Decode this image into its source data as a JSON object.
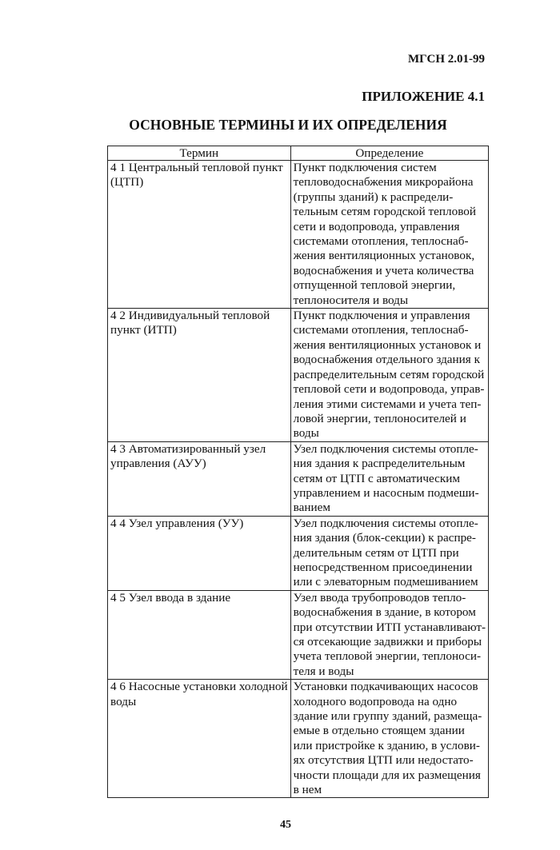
{
  "header": {
    "doc_code": "МГСН 2.01-99",
    "appendix": "ПРИЛОЖЕНИЕ 4.1"
  },
  "title": "ОСНОВНЫЕ ТЕРМИНЫ И ИХ ОПРЕДЕЛЕНИЯ",
  "table": {
    "columns": [
      "Термин",
      "Определение"
    ],
    "rows": [
      {
        "term": [
          "4 1  Центральный тепловой пункт",
          "(ЦТП)"
        ],
        "definition": [
          "Пункт подключения систем",
          "тепловодоснабжения микрорайона",
          "(группы зданий) к распредели-",
          "тельным сетям городской тепловой",
          "сети и водопровода, управления",
          "системами отопления, теплоснаб-",
          "жения вентиляционных установок,",
          "водоснабжения и учета количества",
          "отпущенной тепловой энергии,",
          "теплоносителя и воды"
        ]
      },
      {
        "term": [
          "4 2  Индивидуальный тепловой",
          "пункт (ИТП)"
        ],
        "definition": [
          "Пункт подключения и управления",
          "системами отопления, теплоснаб-",
          "жения вентиляционных установок и",
          "водоснабжения отдельного здания к",
          "распределительным сетям городской",
          "тепловой сети и водопровода, управ-",
          "ления этими системами и учета теп-",
          "ловой энергии, теплоносителей и",
          "воды"
        ]
      },
      {
        "term": [
          "4 3  Автоматизированный узел",
          "управления (АУУ)"
        ],
        "definition": [
          "Узел подключения системы отопле-",
          "ния здания к распределительным",
          "сетям от ЦТП с автоматическим",
          "управлением и насосным подмеши-",
          "ванием"
        ]
      },
      {
        "term": [
          "4 4  Узел управления (УУ)"
        ],
        "definition": [
          "Узел подключения системы отопле-",
          "ния здания (блок-секции) к распре-",
          "делительным сетям от ЦТП при",
          "непосредственном присоединении",
          "или с элеваторным подмешиванием"
        ]
      },
      {
        "term": [
          "4 5  Узел ввода в здание"
        ],
        "definition": [
          "Узел ввода трубопроводов тепло-",
          "водоснабжения в здание, в котором",
          "при отсутствии ИТП устанавливают-",
          "ся отсекающие задвижки и приборы",
          "учета тепловой энергии, теплоноси-",
          "теля и воды"
        ]
      },
      {
        "term": [
          "4 6  Насосные установки холодной",
          "воды"
        ],
        "definition": [
          "Установки подкачивающих насосов",
          "холодного водопровода на одно",
          "здание или группу зданий, размеща-",
          "емые в отдельно стоящем здании",
          "или пристройке к зданию, в услови-",
          "ях отсутствия ЦТП или недостато-",
          "чности площади для их размещения",
          "в нем"
        ]
      }
    ]
  },
  "page_number": "45"
}
